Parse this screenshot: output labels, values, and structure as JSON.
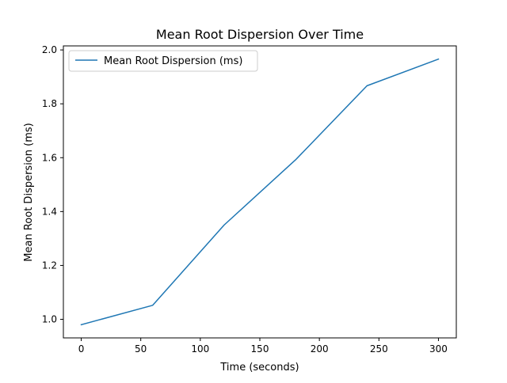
{
  "chart_data": {
    "type": "line",
    "title": "Mean Root Dispersion Over Time",
    "xlabel": "Time (seconds)",
    "ylabel": "Mean Root Dispersion (ms)",
    "xlim": [
      -15,
      315
    ],
    "ylim": [
      0.931,
      2.015
    ],
    "x_ticks": [
      0,
      50,
      100,
      150,
      200,
      250,
      300
    ],
    "x_tick_labels": [
      "0",
      "50",
      "100",
      "150",
      "200",
      "250",
      "300"
    ],
    "y_ticks": [
      1.0,
      1.2,
      1.4,
      1.6,
      1.8,
      2.0
    ],
    "y_tick_labels": [
      "1.0",
      "1.2",
      "1.4",
      "1.6",
      "1.8",
      "2.0"
    ],
    "grid": false,
    "legend_position": "upper-left",
    "series": [
      {
        "name": "Mean Root Dispersion (ms)",
        "color": "#1f77b4",
        "x": [
          0,
          60,
          120,
          180,
          240,
          300
        ],
        "y": [
          0.98,
          1.052,
          1.35,
          1.592,
          1.867,
          1.966
        ]
      }
    ]
  }
}
